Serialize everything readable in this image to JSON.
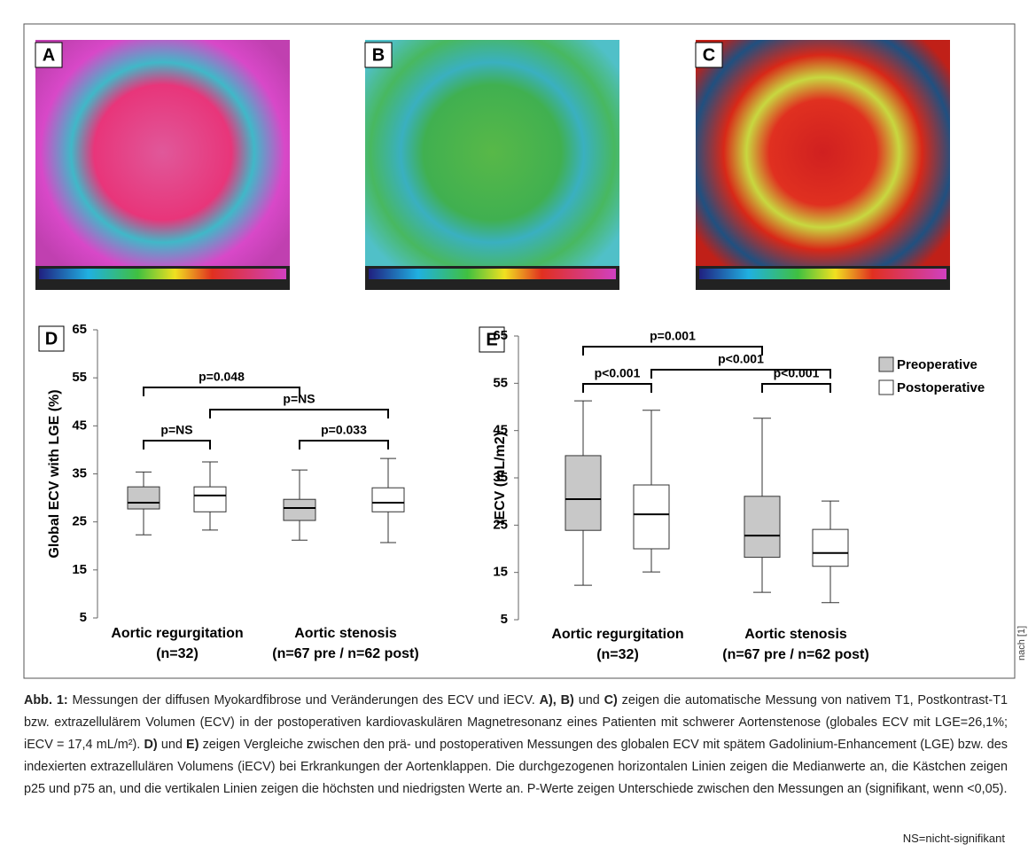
{
  "panels": [
    {
      "label": "A"
    },
    {
      "label": "B"
    },
    {
      "label": "C"
    }
  ],
  "chart_data": [
    {
      "type": "box",
      "panel": "D",
      "ylabel": "Global ECV with LGE (%)",
      "categories": [
        [
          "Aortic regurgitation",
          "(n=32)"
        ],
        [
          "Aortic stenosis",
          "(n=67 pre / n=62 post)"
        ]
      ],
      "ylim": [
        5,
        65
      ],
      "yticks": [
        5,
        15,
        25,
        35,
        45,
        55,
        65
      ],
      "series": [
        {
          "color": "#c8c8c8",
          "boxes": [
            {
              "min": 22.3,
              "q1": 27.7,
              "median": 29,
              "q3": 32.3,
              "max": 35.4
            },
            {
              "min": 21.2,
              "q1": 25.3,
              "median": 27.9,
              "q3": 29.7,
              "max": 35.8
            }
          ]
        },
        {
          "color": "#ffffff",
          "boxes": [
            {
              "min": 23.3,
              "q1": 27.1,
              "median": 30.5,
              "q3": 32.3,
              "max": 37.5
            },
            {
              "min": 20.7,
              "q1": 27.1,
              "median": 29,
              "q3": 32.1,
              "max": 38.2
            }
          ]
        }
      ],
      "annotations": [
        "p=0.048",
        "p=NS",
        "p=NS",
        "p=0.033"
      ]
    },
    {
      "type": "box",
      "panel": "E",
      "ylabel": "iECV (mL/m2)",
      "categories": [
        [
          "Aortic regurgitation",
          "(n=32)"
        ],
        [
          "Aortic stenosis",
          "(n=67 pre / n=62 post)"
        ]
      ],
      "ylim": [
        5,
        65
      ],
      "yticks": [
        5,
        15,
        25,
        35,
        45,
        55,
        65
      ],
      "series": [
        {
          "name": "Preoperative",
          "color": "#c8c8c8",
          "boxes": [
            {
              "min": 12.3,
              "q1": 23.9,
              "median": 30.5,
              "q3": 39.7,
              "max": 51.3
            },
            {
              "min": 10.8,
              "q1": 18.2,
              "median": 22.8,
              "q3": 31.1,
              "max": 47.6
            }
          ]
        },
        {
          "name": "Postoperative",
          "color": "#ffffff",
          "boxes": [
            {
              "min": 15.1,
              "q1": 20,
              "median": 27.3,
              "q3": 33.5,
              "max": 49.3
            },
            {
              "min": 8.6,
              "q1": 16.3,
              "median": 19.1,
              "q3": 24.1,
              "max": 30.1
            }
          ]
        }
      ],
      "annotations": [
        "p=0.001",
        "p<0.001",
        "p<0.001",
        "p<0.001"
      ],
      "legend": "right"
    }
  ],
  "caption": [
    {
      "text": "Abb. 1:",
      "bold": true
    },
    {
      "text": " Messungen der diffusen Myokardfibrose und Veränderungen des ECV und iECV. "
    },
    {
      "text": "A), B)",
      "bold": true
    },
    {
      "text": " und "
    },
    {
      "text": "C)",
      "bold": true
    },
    {
      "text": " zeigen die automatische Messung von nativem T1, Postkontrast-T1 bzw. extrazellulärem Volumen (ECV) in der postoperativen kardiovaskulären Magnetresonanz eines Patienten mit schwerer Aortenstenose (globales ECV mit LGE=26,1%; iECV = 17,4 mL/m²). "
    },
    {
      "text": "D)",
      "bold": true
    },
    {
      "text": " und "
    },
    {
      "text": "E)",
      "bold": true
    },
    {
      "text": " zeigen Vergleiche zwischen den prä- und postoperativen Messungen des globalen ECV mit spätem Gadolinium-Enhancement (LGE) bzw. des indexierten extrazellulären Volumens (iECV) bei Erkrankungen der Aortenklappen. Die durchgezogenen horizontalen Linien zeigen die Medianwerte an, die Kästchen zeigen p25 und p75 an, und die vertikalen Linien zeigen die höchsten und niedrigsten Werte an. P-Werte zeigen Unterschiede zwischen den Messungen an (signifikant, wenn <0,05)."
    }
  ],
  "source": "nach [1]",
  "footnote": "NS=nicht-signifikant"
}
